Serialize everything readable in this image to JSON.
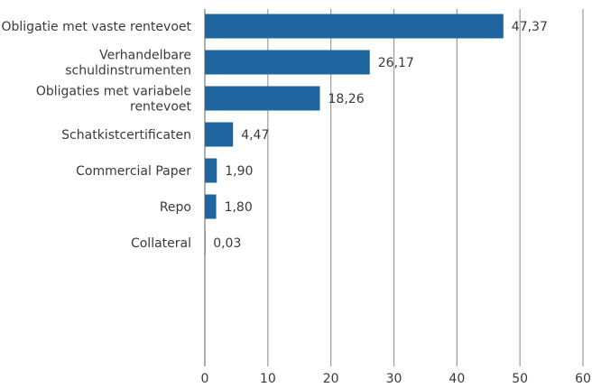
{
  "chart_data": {
    "type": "bar",
    "orientation": "horizontal",
    "categories": [
      "Obligatie met vaste rentevoet",
      "Verhandelbare schuldinstrumenten",
      "Obligaties met variabele rentevoet",
      "Schatkistcertificaten",
      "Commercial Paper",
      "Repo",
      "Collateral"
    ],
    "category_lines": [
      [
        "Obligatie met vaste rentevoet"
      ],
      [
        "Verhandelbare",
        "schuldinstrumenten"
      ],
      [
        "Obligaties met variabele",
        "rentevoet"
      ],
      [
        "Schatkistcertificaten"
      ],
      [
        "Commercial Paper"
      ],
      [
        "Repo"
      ],
      [
        "Collateral"
      ]
    ],
    "values": [
      47.37,
      26.17,
      18.26,
      4.47,
      1.9,
      1.8,
      0.03
    ],
    "value_labels": [
      "47,37",
      "26,17",
      "18,26",
      "4,47",
      "1,90",
      "1,80",
      "0,03"
    ],
    "xlim": [
      0,
      60
    ],
    "xticks": [
      0,
      10,
      20,
      30,
      40,
      50,
      60
    ],
    "grid": true,
    "bar_color": "#1f65a0",
    "grid_color": "#9a9a9a",
    "text_color": "#3a3a3a"
  }
}
